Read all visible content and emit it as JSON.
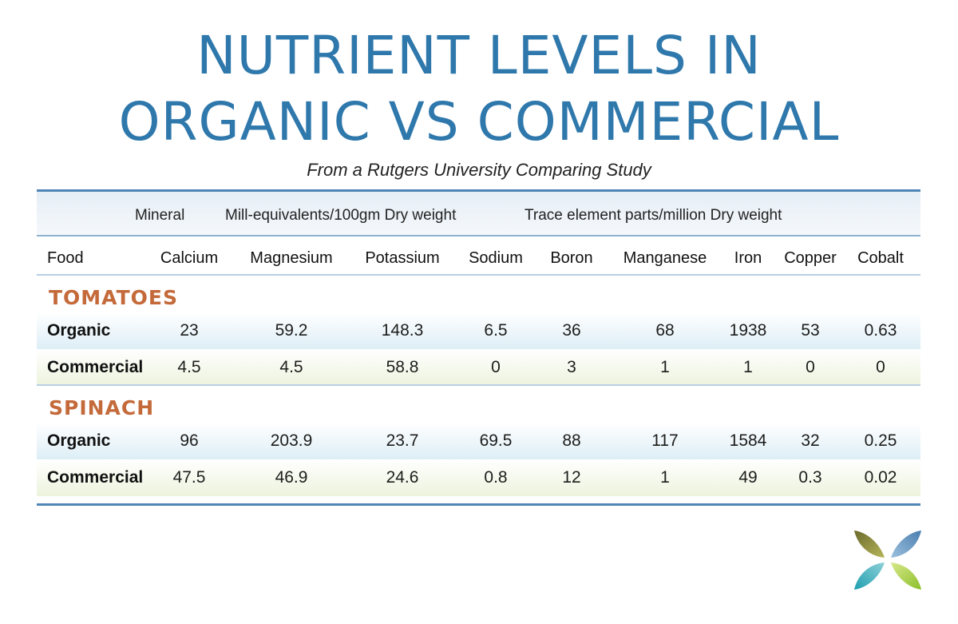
{
  "title": {
    "line1": "NUTRIENT LEVELS IN",
    "line2": "ORGANIC VS COMMERCIAL"
  },
  "subtitle": "From a Rutgers University Comparing Study",
  "group_labels": {
    "mineral": "Mineral",
    "mill_equivalents": "Mill-equivalents/100gm Dry weight",
    "trace": "Trace element parts/million Dry weight"
  },
  "columns": [
    "Food",
    "Calcium",
    "Magnesium",
    "Potassium",
    "Sodium",
    "Boron",
    "Manganese",
    "Iron",
    "Copper",
    "Cobalt"
  ],
  "sections": [
    {
      "name": "TOMATOES",
      "rows": [
        {
          "label": "Organic",
          "values": [
            "23",
            "59.2",
            "148.3",
            "6.5",
            "36",
            "68",
            "1938",
            "53",
            "0.63"
          ]
        },
        {
          "label": "Commercial",
          "values": [
            "4.5",
            "4.5",
            "58.8",
            "0",
            "3",
            "1",
            "1",
            "0",
            "0"
          ]
        }
      ]
    },
    {
      "name": "SPINACH",
      "rows": [
        {
          "label": "Organic",
          "values": [
            "96",
            "203.9",
            "23.7",
            "69.5",
            "88",
            "117",
            "1584",
            "32",
            "0.25"
          ]
        },
        {
          "label": "Commercial",
          "values": [
            "47.5",
            "46.9",
            "24.6",
            "0.8",
            "12",
            "1",
            "49",
            "0.3",
            "0.02"
          ]
        }
      ]
    }
  ],
  "colors": {
    "title": "#2f78ac",
    "section": "#c46a3a",
    "rule": "#4f86b6",
    "organic_band": "#ddeef6",
    "commercial_band": "#edf3dd"
  },
  "logo_icon": "four-leaf-logo-icon"
}
